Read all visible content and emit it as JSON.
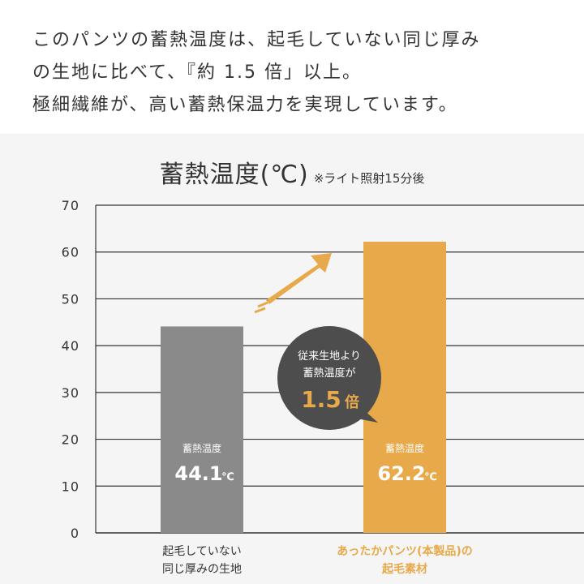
{
  "intro": {
    "lines": [
      "このパンツの蓄熱温度は、起毛していない同じ厚み",
      "の生地に比べて、『約 1.5 倍」以上。",
      "極細繊維が、高い蓄熱保温力を実現しています。"
    ]
  },
  "chart_data": {
    "type": "bar",
    "title": "蓄熱温度(℃)",
    "subtitle": "※ライト照射15分後",
    "ylim": [
      0,
      70
    ],
    "yticks": [
      0,
      10,
      20,
      30,
      40,
      50,
      60,
      70
    ],
    "grid": true,
    "categories": [
      [
        "起毛していない",
        "同じ厚みの生地"
      ],
      [
        "あったかパンツ(本製品)の",
        "起毛素材"
      ]
    ],
    "values": [
      44.1,
      62.2
    ],
    "bar_label_title": "蓄熱温度",
    "value_labels": [
      "44.1",
      "62.2"
    ],
    "unit": "℃",
    "colors": [
      "#8a8a8a",
      "#e8a94a"
    ],
    "category_colors": [
      "#333333",
      "#e8a94a"
    ],
    "callout": {
      "line1": "従来生地より",
      "line2": "蓄熱温度が",
      "value": "1.5",
      "suffix": "倍",
      "color": "#4d4d4d",
      "accent": "#e8a94a"
    }
  }
}
